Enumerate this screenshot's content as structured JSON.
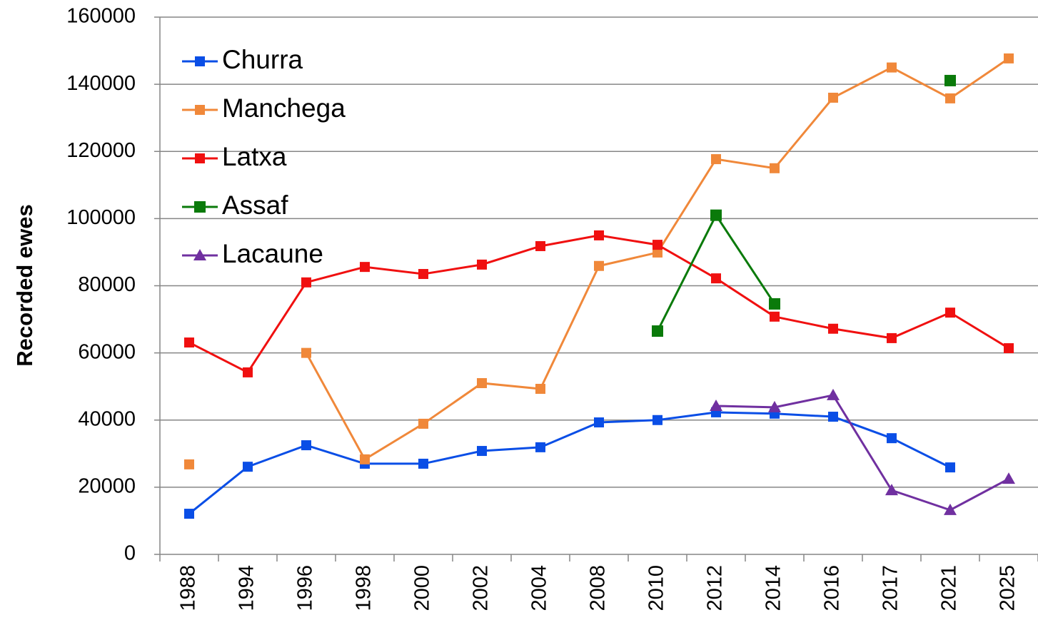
{
  "chart_data": {
    "type": "line",
    "y_label": "Recorded ewes",
    "categories": [
      "1988",
      "1994",
      "1996",
      "1998",
      "2000",
      "2002",
      "2004",
      "2008",
      "2010",
      "2012",
      "2014",
      "2016",
      "2017",
      "2021",
      "2025"
    ],
    "ylim": [
      0,
      160000
    ],
    "yticks": [
      0,
      20000,
      40000,
      60000,
      80000,
      100000,
      120000,
      140000,
      160000
    ],
    "grid": true,
    "legend": "upper left",
    "series": [
      {
        "name": "Churra",
        "color": "#0a4ee6",
        "marker": "square",
        "values": [
          12100,
          26100,
          32500,
          27000,
          27000,
          30800,
          31900,
          39300,
          40000,
          42300,
          41900,
          41000,
          34600,
          25900,
          null
        ]
      },
      {
        "name": "Manchega",
        "color": "#f0883a",
        "marker": "square",
        "values": [
          26800,
          null,
          60000,
          28300,
          38900,
          51000,
          49300,
          85900,
          89900,
          117700,
          115000,
          136000,
          145000,
          135800,
          147700
        ]
      },
      {
        "name": "Latxa",
        "color": "#f01010",
        "marker": "square",
        "values": [
          63100,
          54200,
          81000,
          85600,
          83500,
          86300,
          91800,
          95000,
          92200,
          82200,
          70800,
          67200,
          64400,
          72000,
          61400
        ]
      },
      {
        "name": "Assaf",
        "color": "#0a7a0a",
        "marker": "square",
        "values": [
          null,
          null,
          null,
          null,
          null,
          null,
          null,
          null,
          66500,
          101000,
          74600,
          null,
          null,
          141100,
          null
        ]
      },
      {
        "name": "Lacaune",
        "color": "#7030a0",
        "marker": "triangle",
        "values": [
          null,
          null,
          null,
          null,
          null,
          null,
          null,
          null,
          null,
          44200,
          43800,
          47400,
          19100,
          13200,
          22500
        ]
      }
    ]
  }
}
